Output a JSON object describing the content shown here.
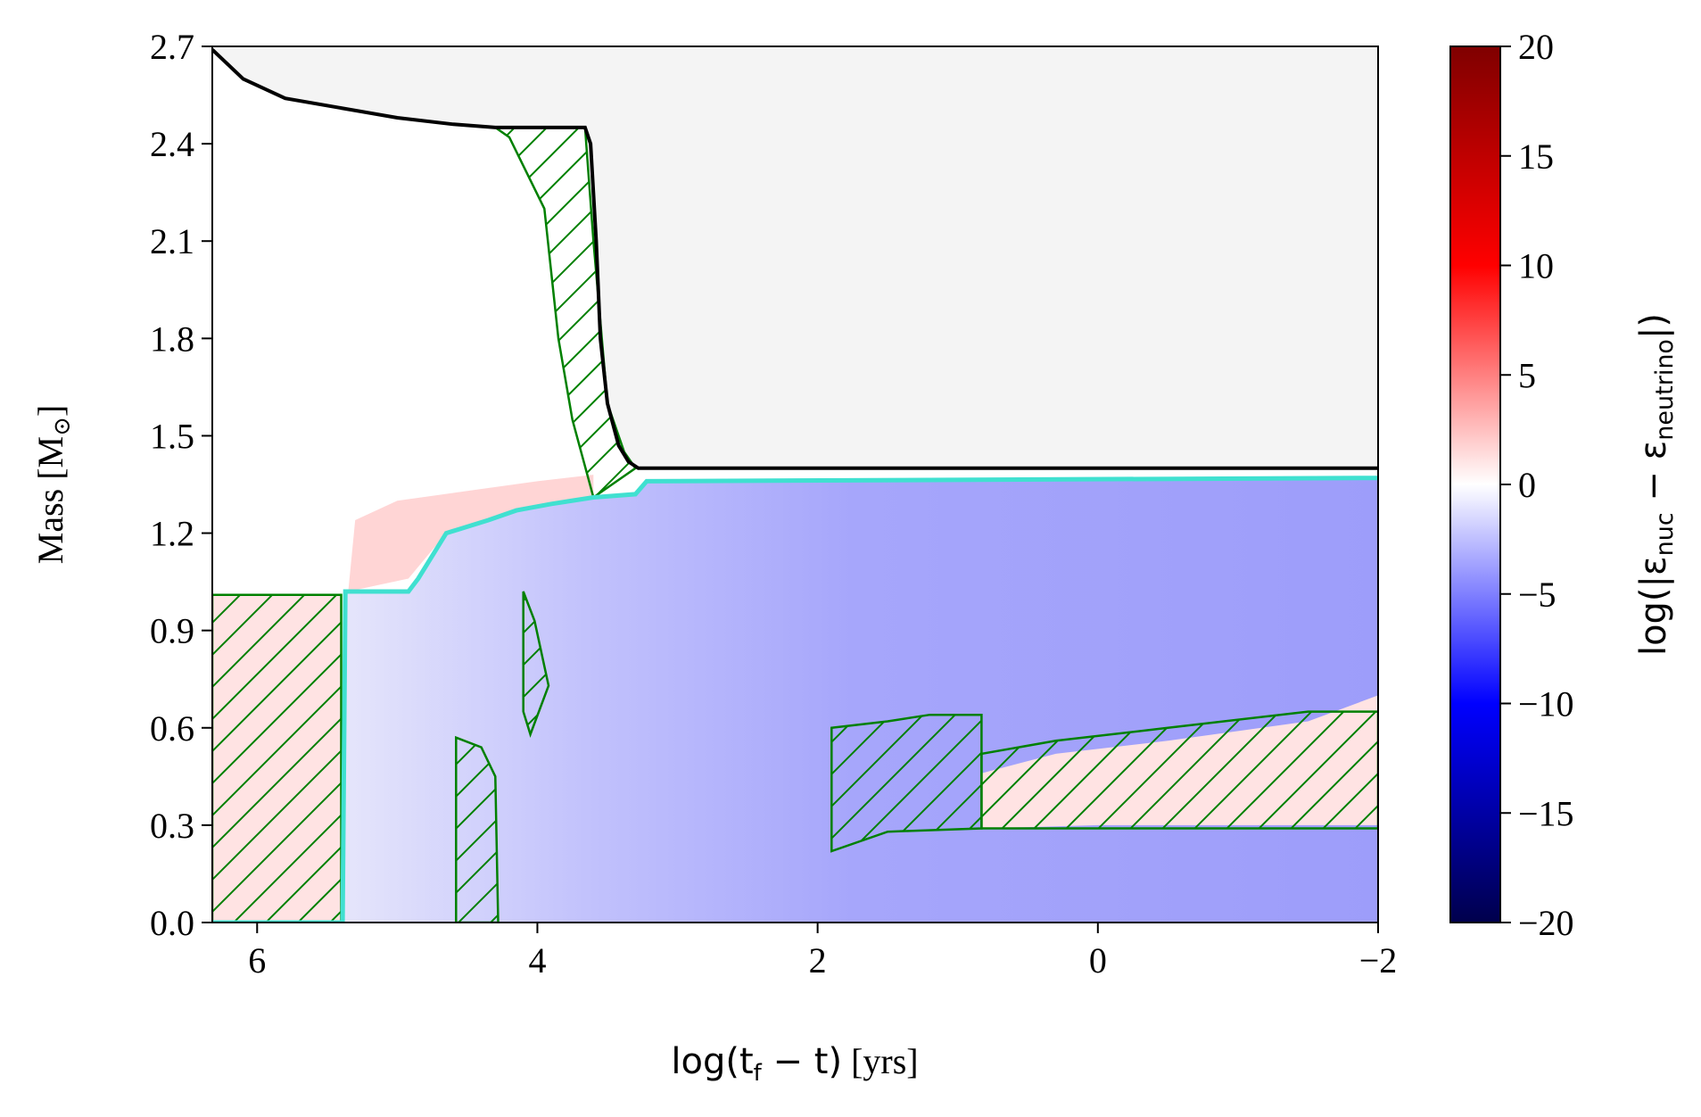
{
  "chart_data": {
    "type": "kippenhahn",
    "xlabel": {
      "main": "log(t",
      "sub": "f",
      "tail": " − t)",
      "unit": " [yrs]"
    },
    "ylabel": {
      "main": "Mass [M",
      "sub": "⊙",
      "tail": "]"
    },
    "xlim": [
      6.32,
      -2.0
    ],
    "ylim": [
      0.0,
      2.7
    ],
    "x_inverted": true,
    "xticks": [
      6,
      4,
      2,
      0,
      -2
    ],
    "xtick_labels": [
      "6",
      "4",
      "2",
      "0",
      "−2"
    ],
    "yticks": [
      0.0,
      0.3,
      0.6,
      0.9,
      1.2,
      1.5,
      1.8,
      2.1,
      2.4,
      2.7
    ],
    "ytick_labels": [
      "0.0",
      "0.3",
      "0.6",
      "0.9",
      "1.2",
      "1.5",
      "1.8",
      "2.1",
      "2.4",
      "2.7"
    ],
    "colorbar": {
      "label": {
        "main": "log(|ε",
        "sub1": "nuc",
        "mid": " − ε",
        "sub2": "neutrino",
        "tail": "|)"
      },
      "range": [
        -20,
        20
      ],
      "ticks": [
        20,
        15,
        10,
        5,
        0,
        -5,
        -10,
        -15,
        -20
      ],
      "tick_labels": [
        "20",
        "15",
        "10",
        "5",
        "0",
        "−5",
        "−10",
        "−15",
        "−20"
      ],
      "colormap": "seismic",
      "stops": [
        "#00004c",
        "#0000ff",
        "#ffffff",
        "#ff0000",
        "#7f0000"
      ]
    },
    "total_mass_line": {
      "color": "#000000",
      "points": [
        [
          6.32,
          2.69
        ],
        [
          6.1,
          2.6
        ],
        [
          5.8,
          2.54
        ],
        [
          5.4,
          2.51
        ],
        [
          5.0,
          2.48
        ],
        [
          4.6,
          2.46
        ],
        [
          4.3,
          2.45
        ],
        [
          3.66,
          2.45
        ],
        [
          3.62,
          2.4
        ],
        [
          3.58,
          2.1
        ],
        [
          3.55,
          1.8
        ],
        [
          3.5,
          1.6
        ],
        [
          3.42,
          1.47
        ],
        [
          3.35,
          1.42
        ],
        [
          3.28,
          1.4
        ],
        [
          -2.0,
          1.4
        ]
      ]
    },
    "core_boundary_line": {
      "color": "#40e0d0",
      "points": [
        [
          6.32,
          0.0
        ],
        [
          5.39,
          0.0
        ],
        [
          5.37,
          1.02
        ],
        [
          4.92,
          1.02
        ],
        [
          4.85,
          1.06
        ],
        [
          4.65,
          1.2
        ],
        [
          4.35,
          1.24
        ],
        [
          4.15,
          1.27
        ],
        [
          3.9,
          1.29
        ],
        [
          3.6,
          1.31
        ],
        [
          3.3,
          1.32
        ],
        [
          3.22,
          1.36
        ],
        [
          -2.0,
          1.37
        ]
      ]
    },
    "convective_zones_color": "#008000",
    "convective_zones": [
      [
        [
          6.32,
          0.0
        ],
        [
          6.32,
          1.01
        ],
        [
          5.4,
          1.01
        ],
        [
          5.4,
          0.0
        ]
      ],
      [
        [
          4.58,
          0.0
        ],
        [
          4.58,
          0.57
        ],
        [
          4.4,
          0.54
        ],
        [
          4.3,
          0.45
        ],
        [
          4.28,
          0.0
        ]
      ],
      [
        [
          4.1,
          0.65
        ],
        [
          4.1,
          1.02
        ],
        [
          4.02,
          0.93
        ],
        [
          3.92,
          0.73
        ],
        [
          4.05,
          0.58
        ]
      ],
      [
        [
          4.3,
          2.45
        ],
        [
          3.66,
          2.45
        ],
        [
          3.6,
          2.1
        ],
        [
          3.5,
          1.6
        ],
        [
          3.38,
          1.45
        ],
        [
          3.3,
          1.4
        ],
        [
          3.6,
          1.31
        ],
        [
          3.75,
          1.55
        ],
        [
          3.85,
          1.8
        ],
        [
          3.95,
          2.2
        ],
        [
          4.2,
          2.42
        ]
      ],
      [
        [
          1.9,
          0.22
        ],
        [
          1.9,
          0.6
        ],
        [
          1.5,
          0.62
        ],
        [
          1.2,
          0.64
        ],
        [
          0.83,
          0.64
        ],
        [
          0.83,
          0.29
        ],
        [
          1.5,
          0.28
        ],
        [
          1.9,
          0.22
        ]
      ],
      [
        [
          0.83,
          0.29
        ],
        [
          0.83,
          0.52
        ],
        [
          0.3,
          0.56
        ],
        [
          -0.5,
          0.6
        ],
        [
          -1.5,
          0.65
        ],
        [
          -2.0,
          0.65
        ],
        [
          -2.0,
          0.29
        ],
        [
          -1.0,
          0.29
        ],
        [
          0.0,
          0.29
        ],
        [
          0.83,
          0.29
        ]
      ]
    ],
    "heating_regions": [
      {
        "value": 2.0,
        "points": [
          [
            6.32,
            0.0
          ],
          [
            6.32,
            1.01
          ],
          [
            5.4,
            1.01
          ],
          [
            5.4,
            0.0
          ]
        ]
      },
      {
        "value": 3.0,
        "points": [
          [
            5.35,
            1.02
          ],
          [
            4.92,
            1.06
          ],
          [
            4.65,
            1.2
          ],
          [
            4.35,
            1.24
          ],
          [
            4.15,
            1.27
          ],
          [
            3.9,
            1.29
          ],
          [
            3.6,
            1.31
          ],
          [
            3.6,
            1.38
          ],
          [
            4.0,
            1.36
          ],
          [
            4.5,
            1.33
          ],
          [
            5.0,
            1.3
          ],
          [
            5.3,
            1.24
          ]
        ]
      },
      {
        "value": 2.0,
        "points": [
          [
            0.83,
            0.29
          ],
          [
            0.83,
            0.46
          ],
          [
            0.3,
            0.52
          ],
          [
            -0.5,
            0.56
          ],
          [
            -1.5,
            0.62
          ],
          [
            -2.0,
            0.7
          ],
          [
            -2.0,
            0.3
          ],
          [
            -1.0,
            0.3
          ],
          [
            0.0,
            0.3
          ]
        ]
      }
    ]
  }
}
